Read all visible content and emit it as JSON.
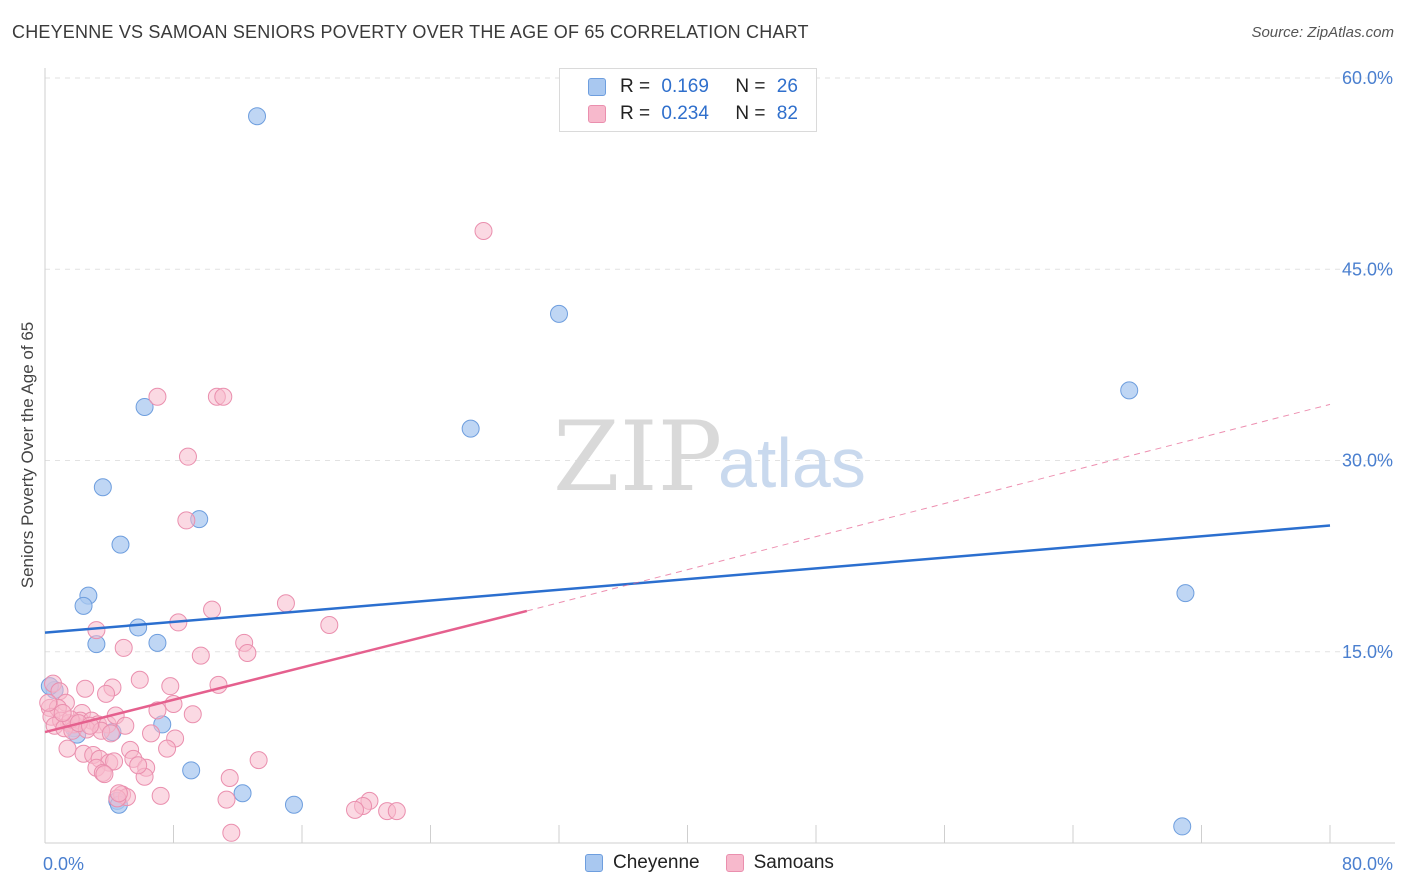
{
  "title": "CHEYENNE VS SAMOAN SENIORS POVERTY OVER THE AGE OF 65 CORRELATION CHART",
  "source": "Source: ZipAtlas.com",
  "watermark": {
    "zip": "ZIP",
    "atlas": "atlas"
  },
  "legend": {
    "rows": [
      {
        "r_label": "R =",
        "r_value": "0.169",
        "n_label": "N =",
        "n_value": "26"
      },
      {
        "r_label": "R =",
        "r_value": "0.234",
        "n_label": "N =",
        "n_value": "82"
      }
    ]
  },
  "bottom_legend": {
    "items": [
      "Cheyenne",
      "Samoans"
    ]
  },
  "colors": {
    "cheyenne_fill": "#a9c8f0",
    "cheyenne_stroke": "#6e9ede",
    "cheyenne_line": "#2b6fcf",
    "samoan_fill": "#f7b9cc",
    "samoan_stroke": "#ea8fae",
    "samoan_line": "#e5608e",
    "tick": "#4a7fcf",
    "grid": "#e2e2e2"
  },
  "chart_data": {
    "type": "scatter",
    "title": "CHEYENNE VS SAMOAN SENIORS POVERTY OVER THE AGE OF 65 CORRELATION CHART",
    "xlabel": "",
    "ylabel": "Seniors Poverty Over the Age of 65",
    "xlim": [
      0,
      80
    ],
    "ylim": [
      0,
      60
    ],
    "x_tick_labels": [
      "0.0%",
      "80.0%"
    ],
    "y_ticks": [
      15,
      30,
      45,
      60
    ],
    "y_tick_labels": [
      "15.0%",
      "30.0%",
      "45.0%",
      "60.0%"
    ],
    "series": [
      {
        "name": "Cheyenne",
        "R": 0.169,
        "N": 26,
        "trend": {
          "x": [
            0,
            80
          ],
          "y": [
            16.5,
            24.9
          ]
        },
        "points": [
          [
            13.2,
            57.0
          ],
          [
            32.0,
            41.5
          ],
          [
            26.5,
            32.5
          ],
          [
            67.5,
            35.5
          ],
          [
            6.2,
            34.2
          ],
          [
            3.6,
            27.9
          ],
          [
            9.6,
            25.4
          ],
          [
            4.7,
            23.4
          ],
          [
            2.7,
            19.4
          ],
          [
            2.4,
            18.6
          ],
          [
            71.0,
            19.6
          ],
          [
            5.8,
            16.9
          ],
          [
            3.2,
            15.6
          ],
          [
            7.0,
            15.7
          ],
          [
            0.6,
            12.0
          ],
          [
            0.3,
            12.3
          ],
          [
            7.3,
            9.3
          ],
          [
            4.2,
            8.7
          ],
          [
            1.8,
            9.0
          ],
          [
            2.0,
            8.5
          ],
          [
            9.1,
            5.7
          ],
          [
            12.3,
            3.9
          ],
          [
            15.5,
            3.0
          ],
          [
            4.5,
            3.3
          ],
          [
            4.6,
            3.0
          ],
          [
            70.8,
            1.3
          ]
        ]
      },
      {
        "name": "Samoans",
        "R": 0.234,
        "N": 82,
        "trend": {
          "x": [
            0,
            30
          ],
          "y": [
            8.7,
            18.2
          ]
        },
        "trend_extension": {
          "x": [
            30,
            80
          ],
          "y": [
            18.2,
            34.4
          ]
        },
        "points": [
          [
            27.3,
            48.0
          ],
          [
            7.0,
            35.0
          ],
          [
            10.7,
            35.0
          ],
          [
            11.1,
            35.0
          ],
          [
            8.9,
            30.3
          ],
          [
            8.8,
            25.3
          ],
          [
            10.4,
            18.3
          ],
          [
            15.0,
            18.8
          ],
          [
            17.7,
            17.1
          ],
          [
            8.3,
            17.3
          ],
          [
            3.2,
            16.7
          ],
          [
            4.9,
            15.3
          ],
          [
            12.4,
            15.7
          ],
          [
            12.6,
            14.9
          ],
          [
            9.7,
            14.7
          ],
          [
            0.5,
            12.5
          ],
          [
            0.9,
            11.9
          ],
          [
            2.5,
            12.1
          ],
          [
            4.2,
            12.2
          ],
          [
            5.9,
            12.8
          ],
          [
            7.8,
            12.3
          ],
          [
            10.8,
            12.4
          ],
          [
            3.8,
            11.7
          ],
          [
            1.3,
            11.0
          ],
          [
            0.3,
            10.6
          ],
          [
            0.8,
            10.6
          ],
          [
            2.3,
            10.2
          ],
          [
            7.0,
            10.4
          ],
          [
            8.0,
            10.9
          ],
          [
            9.2,
            10.1
          ],
          [
            0.4,
            9.9
          ],
          [
            1.0,
            9.6
          ],
          [
            1.5,
            9.4
          ],
          [
            1.8,
            9.3
          ],
          [
            2.2,
            9.6
          ],
          [
            2.9,
            9.6
          ],
          [
            3.3,
            9.3
          ],
          [
            3.9,
            9.3
          ],
          [
            4.4,
            10.0
          ],
          [
            5.0,
            9.2
          ],
          [
            0.6,
            9.2
          ],
          [
            1.2,
            9.0
          ],
          [
            1.7,
            8.8
          ],
          [
            2.6,
            8.9
          ],
          [
            3.5,
            8.8
          ],
          [
            4.1,
            8.6
          ],
          [
            6.6,
            8.6
          ],
          [
            8.1,
            8.2
          ],
          [
            7.6,
            7.4
          ],
          [
            1.4,
            7.4
          ],
          [
            2.4,
            7.0
          ],
          [
            3.0,
            6.9
          ],
          [
            3.4,
            6.6
          ],
          [
            4.0,
            6.3
          ],
          [
            5.3,
            7.3
          ],
          [
            5.5,
            6.6
          ],
          [
            4.3,
            6.4
          ],
          [
            3.2,
            5.9
          ],
          [
            3.6,
            5.5
          ],
          [
            6.3,
            5.9
          ],
          [
            6.2,
            5.2
          ],
          [
            13.3,
            6.5
          ],
          [
            11.5,
            5.1
          ],
          [
            7.2,
            3.7
          ],
          [
            4.8,
            3.8
          ],
          [
            5.1,
            3.6
          ],
          [
            4.5,
            3.5
          ],
          [
            11.3,
            3.4
          ],
          [
            20.2,
            3.3
          ],
          [
            19.8,
            2.9
          ],
          [
            19.3,
            2.6
          ],
          [
            21.3,
            2.5
          ],
          [
            21.9,
            2.5
          ],
          [
            11.6,
            0.8
          ],
          [
            1.6,
            9.7
          ],
          [
            2.1,
            9.4
          ],
          [
            2.8,
            9.2
          ],
          [
            5.8,
            6.1
          ],
          [
            1.1,
            10.2
          ],
          [
            0.2,
            11.0
          ],
          [
            4.6,
            3.9
          ],
          [
            3.7,
            5.4
          ]
        ]
      }
    ]
  }
}
